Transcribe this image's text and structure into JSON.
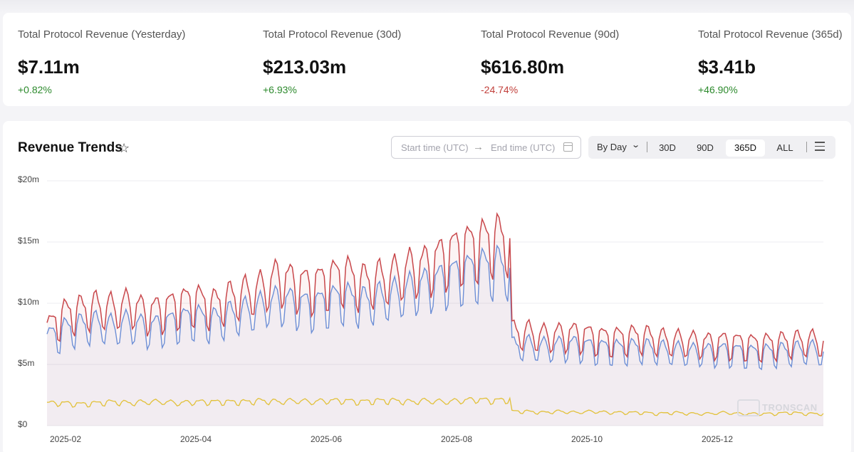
{
  "stats": [
    {
      "label": "Total Protocol Revenue (Yesterday)",
      "value": "$7.11m",
      "change": "+0.82%",
      "direction": "up"
    },
    {
      "label": "Total Protocol Revenue (30d)",
      "value": "$213.03m",
      "change": "+6.93%",
      "direction": "up"
    },
    {
      "label": "Total Protocol Revenue (90d)",
      "value": "$616.80m",
      "change": "-24.74%",
      "direction": "down"
    },
    {
      "label": "Total Protocol Revenue (365d)",
      "value": "$3.41b",
      "change": "+46.90%",
      "direction": "up"
    }
  ],
  "chart_card": {
    "title": "Revenue Trends",
    "star_icon": "star-icon",
    "date_range": {
      "start_placeholder": "Start time (UTC)",
      "arrow": "→",
      "end_placeholder": "End time (UTC)",
      "icon": "calendar-icon"
    },
    "granularity": "By Day",
    "ranges": [
      "30D",
      "90D",
      "365D",
      "ALL"
    ],
    "active_range": "365D",
    "menu_icon": "hamburger-menu-icon",
    "watermark": "TRONSCAN"
  },
  "colors": {
    "total": "#c8474b",
    "tron": "#6d8fd6",
    "other": "#e2c13a",
    "positive": "#2d8a2d",
    "negative": "#c2413c"
  },
  "chart_data": {
    "type": "line",
    "title": "Revenue Trends",
    "xlabel": "",
    "ylabel": "",
    "ylim": [
      0,
      20000000
    ],
    "yticks": [
      0,
      5000000,
      10000000,
      15000000,
      20000000
    ],
    "ytick_labels": [
      "$0",
      "$5m",
      "$10m",
      "$15m",
      "$20m"
    ],
    "xticks": [
      "2025-02",
      "2025-04",
      "2025-06",
      "2025-08",
      "2025-10",
      "2025-12"
    ],
    "x_range": [
      "2025-01-12",
      "2026-01-11"
    ],
    "grid": true,
    "legend": "none",
    "series_weekly_samples": [
      {
        "name": "total",
        "color": "#c8474b",
        "values_m": [
          8.2,
          9.5,
          9.8,
          10.1,
          9.9,
          10.3,
          9.6,
          9.9,
          10.4,
          10.7,
          10.2,
          10.8,
          11.2,
          11.6,
          12.6,
          12.1,
          11.9,
          12.4,
          12.9,
          12.1,
          12.4,
          12.7,
          13.3,
          13.6,
          14.4,
          15.1,
          15.4,
          15.9,
          15.8,
          7.9,
          7.6,
          7.7,
          7.8,
          7.6,
          7.4,
          7.5,
          7.6,
          7.3,
          7.2,
          7.1,
          7.0,
          7.1,
          7.0,
          6.9,
          7.0,
          7.1,
          7.2,
          7.1
        ]
      },
      {
        "name": "tron",
        "color": "#6d8fd6",
        "values_m": [
          7.3,
          8.1,
          8.4,
          8.6,
          8.3,
          8.7,
          8.2,
          8.5,
          8.9,
          9.2,
          8.8,
          9.3,
          9.6,
          10.0,
          10.6,
          10.3,
          10.1,
          10.5,
          10.9,
          10.4,
          10.7,
          11.0,
          11.5,
          11.9,
          12.4,
          12.9,
          13.2,
          13.5,
          13.3,
          6.8,
          6.6,
          6.7,
          6.8,
          6.6,
          6.5,
          6.5,
          6.6,
          6.4,
          6.3,
          6.2,
          6.2,
          6.3,
          6.2,
          6.1,
          6.2,
          6.3,
          6.4,
          6.2
        ]
      },
      {
        "name": "other",
        "color": "#e2c13a",
        "values_m": [
          1.9,
          1.9,
          1.8,
          1.9,
          2.0,
          1.9,
          2.0,
          2.0,
          1.9,
          2.0,
          2.0,
          2.0,
          2.0,
          2.1,
          2.0,
          2.1,
          2.0,
          2.1,
          2.1,
          2.0,
          2.1,
          2.1,
          2.0,
          2.1,
          2.0,
          2.1,
          2.2,
          2.1,
          2.2,
          1.2,
          1.1,
          1.2,
          1.1,
          1.2,
          1.1,
          1.1,
          1.1,
          1.0,
          1.1,
          1.0,
          1.0,
          1.1,
          1.0,
          1.0,
          1.0,
          1.1,
          1.0,
          1.0
        ]
      }
    ]
  }
}
